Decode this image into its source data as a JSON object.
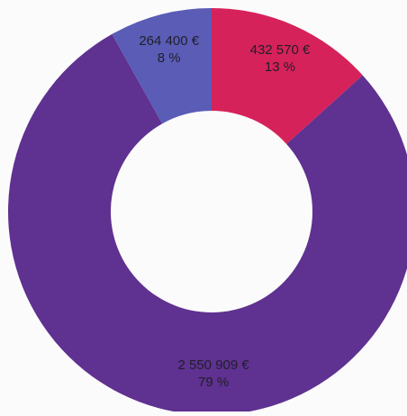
{
  "chart_data": {
    "type": "pie",
    "donut": true,
    "start_angle_deg": 0,
    "direction": "clockwise",
    "legend": "none",
    "slices": [
      {
        "value": 432570,
        "value_label": "432 570 €",
        "percent_label": "13 %",
        "color": "#d6225a"
      },
      {
        "value": 2550909,
        "value_label": "2 550 909 €",
        "percent_label": "79 %",
        "color": "#5f3190"
      },
      {
        "value": 264400,
        "value_label": "264 400 €",
        "percent_label": "8 %",
        "color": "#5a5cb6"
      }
    ]
  }
}
